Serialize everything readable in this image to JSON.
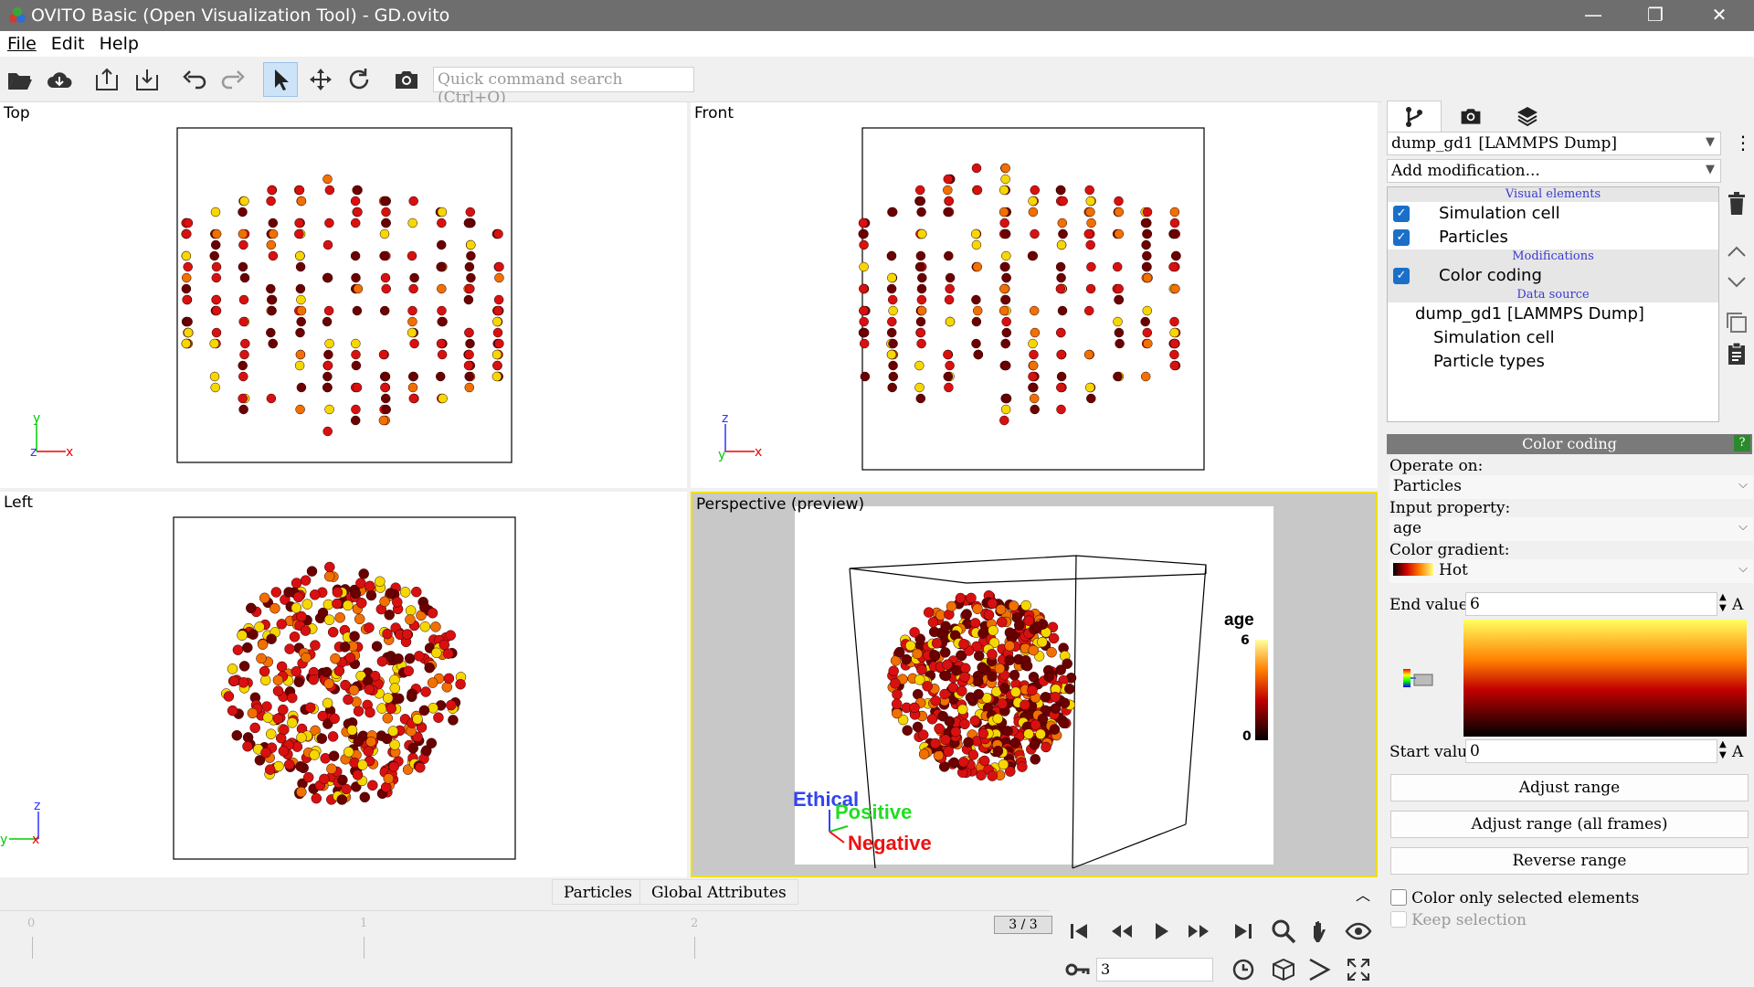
{
  "window": {
    "title": "OVITO Basic (Open Visualization Tool) - GD.ovito"
  },
  "menu": [
    "File",
    "Edit",
    "Help"
  ],
  "toolbar": {
    "search_placeholder": "Quick command search (Ctrl+Q)"
  },
  "viewports": {
    "top": "Top",
    "front": "Front",
    "left": "Left",
    "perspective": "Perspective (preview)"
  },
  "axes": {
    "x": "x",
    "y": "y",
    "z": "z"
  },
  "perspective_legend": {
    "title": "age",
    "max": "6",
    "min": "0"
  },
  "perspective_axes": {
    "z_label": "Ethical",
    "y_label": "Positive",
    "x_label": "Negative"
  },
  "bottom_tabs": [
    "Particles",
    "Global Attributes"
  ],
  "timeline": {
    "ticks": [
      "0",
      "1",
      "2"
    ],
    "frame": "3 / 3",
    "current_frame": "3"
  },
  "pipeline": {
    "source_select": "dump_gd1 [LAMMPS Dump]",
    "add_mod": "Add modification...",
    "sec_visual": "Visual elements",
    "sec_mods": "Modifications",
    "sec_source": "Data source",
    "vis_cell": "Simulation cell",
    "vis_particles": "Particles",
    "mod_color": "Color coding",
    "src_name": "dump_gd1 [LAMMPS Dump]",
    "src_cell": "Simulation cell",
    "src_types": "Particle types"
  },
  "color_coding": {
    "header": "Color coding",
    "help": "?",
    "operate_label": "Operate on:",
    "operate_value": "Particles",
    "input_label": "Input property:",
    "input_value": "age",
    "gradient_label": "Color gradient:",
    "gradient_value": "Hot",
    "end_label": "End value:",
    "end_value": "6",
    "start_label": "Start value:",
    "start_value": "0",
    "unit": "A",
    "btn_adjust": "Adjust range",
    "btn_adjust_all": "Adjust range (all frames)",
    "btn_reverse": "Reverse range",
    "chk_selected": "Color only selected elements",
    "chk_keep": "Keep selection"
  },
  "colors": {
    "accent": "#1a6fc8",
    "viewport_active": "#f0e000",
    "particle_dark": "#6a0000",
    "particle_red": "#d81010",
    "particle_orange": "#f07000",
    "particle_yellow": "#f5d800"
  }
}
